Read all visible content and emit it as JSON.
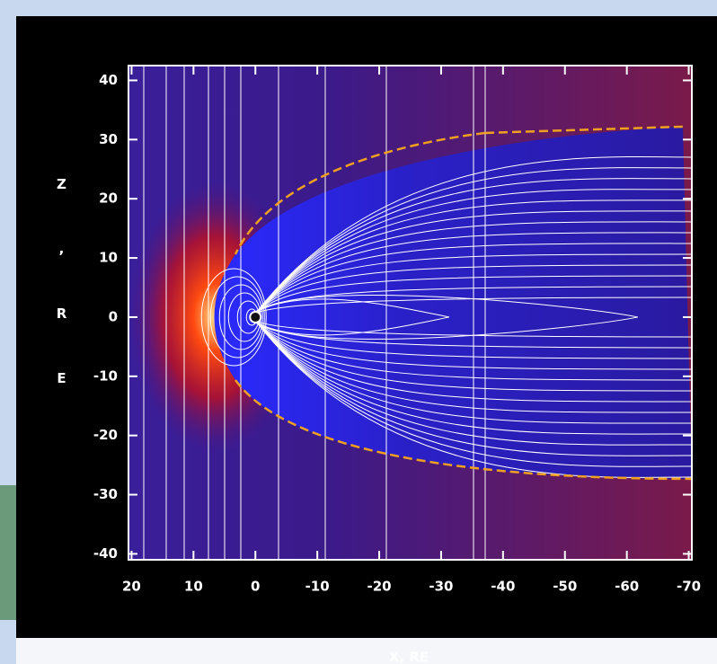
{
  "chart_data": {
    "type": "contour",
    "xlabel": "X, RE",
    "ylabel": "Z , R E",
    "xlim": [
      20.5,
      -70.5
    ],
    "ylim": [
      -41,
      42.5
    ],
    "xticks": [
      20,
      10,
      0,
      -10,
      -20,
      -30,
      -40,
      -50,
      -60,
      -70
    ],
    "yticks": [
      40,
      30,
      20,
      10,
      0,
      -10,
      -20,
      -30,
      -40
    ]
  }
}
